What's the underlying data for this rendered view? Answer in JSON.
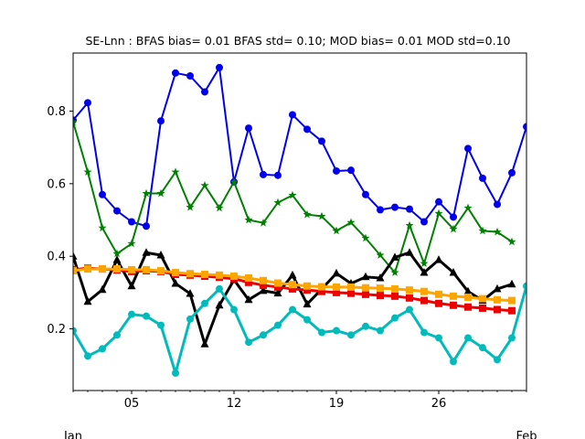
{
  "chart_data": {
    "type": "line",
    "title": "SE-Lnn   : BFAS bias= 0.01 BFAS std= 0.10; MOD bias= 0.01 MOD std=0.10",
    "xlabel": "",
    "ylabel": "",
    "x_start_label": "Jan",
    "x_end_label": "Feb",
    "x_ticks": [
      {
        "day": 5,
        "label": "05"
      },
      {
        "day": 12,
        "label": "12"
      },
      {
        "day": 19,
        "label": "19"
      },
      {
        "day": 26,
        "label": "26"
      }
    ],
    "y_ticks": [
      0.2,
      0.4,
      0.6,
      0.8
    ],
    "xlim": [
      1,
      32
    ],
    "ylim": [
      0.03,
      0.96
    ],
    "grid": false,
    "x": [
      1,
      2,
      3,
      4,
      5,
      6,
      7,
      8,
      9,
      10,
      11,
      12,
      13,
      14,
      15,
      16,
      17,
      18,
      19,
      20,
      21,
      22,
      23,
      24,
      25,
      26,
      27,
      28,
      29,
      30,
      31,
      32
    ],
    "series": [
      {
        "color": "#0000ee",
        "marker": "circle",
        "line_width": 2,
        "values": [
          0.775,
          0.823,
          0.57,
          0.525,
          0.495,
          0.483,
          0.773,
          0.905,
          0.897,
          0.853,
          0.92,
          0.605,
          0.753,
          0.625,
          0.623,
          0.79,
          0.75,
          0.717,
          0.635,
          0.637,
          0.57,
          0.528,
          0.535,
          0.53,
          0.495,
          0.55,
          0.508,
          0.697,
          0.615,
          0.543,
          0.63,
          0.757
        ]
      },
      {
        "color": "#008000",
        "marker": "star",
        "line_width": 2,
        "values": [
          0.77,
          0.632,
          0.478,
          0.407,
          0.435,
          0.573,
          0.573,
          0.632,
          0.535,
          0.595,
          0.533,
          0.605,
          0.5,
          0.492,
          0.548,
          0.568,
          0.515,
          0.51,
          0.47,
          0.493,
          0.45,
          0.403,
          0.355,
          0.485,
          0.38,
          0.518,
          0.475,
          0.533,
          0.47,
          0.467,
          0.44,
          null
        ]
      },
      {
        "color": "#000000",
        "marker": "triangle",
        "line_width": 3,
        "values": [
          0.4,
          0.275,
          0.308,
          0.39,
          0.318,
          0.41,
          0.403,
          0.325,
          0.297,
          0.158,
          0.265,
          0.335,
          0.28,
          0.305,
          0.298,
          0.348,
          0.268,
          0.31,
          0.353,
          0.325,
          0.343,
          0.34,
          0.397,
          0.41,
          0.355,
          0.39,
          0.355,
          0.303,
          0.278,
          0.31,
          0.323,
          null
        ]
      },
      {
        "color": "#ee0000",
        "marker": "square",
        "line_width": 3,
        "values": [
          0.363,
          0.367,
          0.365,
          0.362,
          0.358,
          0.36,
          0.358,
          0.35,
          0.348,
          0.345,
          0.342,
          0.338,
          0.328,
          0.32,
          0.315,
          0.31,
          0.307,
          0.303,
          0.3,
          0.298,
          0.295,
          0.292,
          0.29,
          0.285,
          0.278,
          0.27,
          0.265,
          0.26,
          0.257,
          0.253,
          0.25,
          null
        ]
      },
      {
        "color": "#ffa500",
        "marker": "square",
        "line_width": 3,
        "values": [
          0.36,
          0.365,
          0.365,
          0.365,
          0.363,
          0.363,
          0.36,
          0.355,
          0.352,
          0.35,
          0.348,
          0.345,
          0.34,
          0.333,
          0.326,
          0.322,
          0.318,
          0.316,
          0.315,
          0.315,
          0.313,
          0.312,
          0.31,
          0.307,
          0.303,
          0.295,
          0.29,
          0.287,
          0.283,
          0.28,
          0.278,
          null
        ]
      },
      {
        "color": "#00bbbb",
        "marker": "circle",
        "line_width": 3,
        "values": [
          0.195,
          0.125,
          0.145,
          0.183,
          0.24,
          0.235,
          0.21,
          0.078,
          0.227,
          0.27,
          0.31,
          0.253,
          0.163,
          0.183,
          0.21,
          0.253,
          0.225,
          0.19,
          0.195,
          0.183,
          0.207,
          0.195,
          0.23,
          0.253,
          0.19,
          0.175,
          0.11,
          0.175,
          0.148,
          0.115,
          0.175,
          0.318
        ]
      }
    ]
  }
}
